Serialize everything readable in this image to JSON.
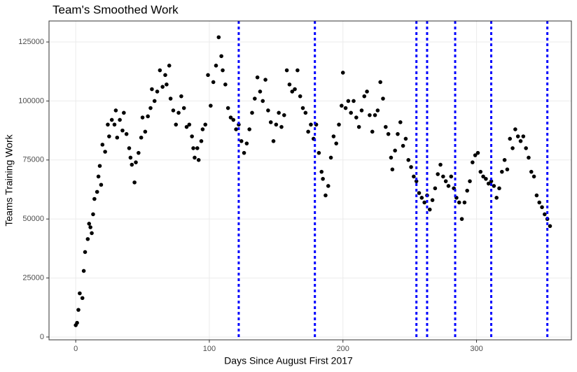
{
  "chart_data": {
    "type": "scatter",
    "title": "Team's Smoothed Work",
    "x_label": "Days Since August First 2017",
    "y_label": "Teams Training Work",
    "xlim": [
      -20,
      371
    ],
    "ylim": [
      -1200,
      133900
    ],
    "xticks": [
      0,
      100,
      200,
      300
    ],
    "yticks": [
      0,
      25000,
      50000,
      75000,
      100000,
      125000
    ],
    "grid": true,
    "vlines": [
      122,
      179,
      255,
      263,
      284,
      311,
      353
    ],
    "vline_color": "#0000ff",
    "series": [
      {
        "color": "#000000",
        "x": [
          0,
          1,
          2,
          3,
          5,
          6,
          7,
          9,
          10,
          11,
          12,
          13,
          14,
          16,
          17,
          18,
          19,
          20,
          22,
          24,
          25,
          27,
          29,
          30,
          31,
          33,
          35,
          36,
          38,
          40,
          41,
          42,
          44,
          45,
          47,
          49,
          50,
          52,
          54,
          56,
          57,
          59,
          61,
          63,
          65,
          67,
          68,
          70,
          71,
          73,
          75,
          77,
          79,
          81,
          83,
          85,
          87,
          88,
          89,
          91,
          92,
          94,
          95,
          97,
          99,
          101,
          103,
          105,
          107,
          109,
          110,
          112,
          114,
          116,
          118,
          120,
          122,
          124,
          126,
          128,
          130,
          132,
          134,
          136,
          138,
          140,
          142,
          144,
          146,
          148,
          150,
          152,
          154,
          156,
          158,
          160,
          162,
          164,
          166,
          168,
          170,
          172,
          174,
          176,
          178,
          180,
          182,
          184,
          185,
          187,
          189,
          191,
          193,
          195,
          197,
          199,
          200,
          202,
          204,
          206,
          208,
          210,
          212,
          214,
          216,
          218,
          220,
          222,
          224,
          226,
          228,
          230,
          232,
          234,
          236,
          237,
          239,
          241,
          243,
          245,
          247,
          249,
          251,
          253,
          255,
          257,
          259,
          261,
          263,
          265,
          267,
          269,
          271,
          273,
          275,
          277,
          279,
          281,
          283,
          285,
          287,
          289,
          291,
          293,
          295,
          297,
          299,
          301,
          303,
          305,
          307,
          309,
          311,
          313,
          315,
          317,
          319,
          321,
          323,
          325,
          327,
          329,
          331,
          333,
          335,
          337,
          339,
          341,
          343,
          345,
          347,
          349,
          351,
          353,
          355
        ],
        "values": [
          5000,
          6000,
          11500,
          18500,
          16500,
          28000,
          36000,
          41500,
          48000,
          46500,
          44000,
          52000,
          58500,
          61500,
          68000,
          72500,
          64500,
          81500,
          78500,
          90000,
          85000,
          92000,
          90000,
          96000,
          84500,
          92000,
          87500,
          95000,
          86000,
          80000,
          76000,
          73000,
          65500,
          74000,
          78000,
          84500,
          93000,
          87000,
          93500,
          97000,
          105000,
          100000,
          104000,
          113000,
          106000,
          111000,
          107000,
          115000,
          101000,
          96000,
          90000,
          95000,
          102000,
          97000,
          89000,
          90000,
          85000,
          80000,
          76000,
          80000,
          75000,
          83000,
          88000,
          90000,
          111000,
          98000,
          108000,
          115000,
          127000,
          119000,
          113000,
          107000,
          97000,
          93000,
          92000,
          88000,
          90000,
          83000,
          78000,
          82000,
          88000,
          95000,
          101000,
          110000,
          104000,
          100000,
          109000,
          96000,
          91000,
          83000,
          90000,
          95000,
          89000,
          94000,
          113000,
          107000,
          104000,
          105000,
          113000,
          102000,
          97000,
          95000,
          87000,
          90000,
          84000,
          90000,
          78000,
          70000,
          67000,
          60000,
          64000,
          76000,
          85000,
          82000,
          90000,
          98000,
          112000,
          97000,
          100000,
          95000,
          100000,
          93000,
          89000,
          96000,
          102000,
          104000,
          94000,
          87000,
          94000,
          96000,
          108000,
          101000,
          89000,
          86000,
          76000,
          71000,
          79000,
          86000,
          91000,
          81000,
          84000,
          75000,
          72000,
          68000,
          66000,
          61000,
          59000,
          57000,
          60000,
          54000,
          58000,
          63000,
          69000,
          73000,
          68000,
          66000,
          64000,
          68000,
          63000,
          59000,
          57000,
          50000,
          57000,
          62000,
          66000,
          74000,
          77000,
          78000,
          70000,
          68000,
          67000,
          65000,
          66000,
          64000,
          59000,
          63000,
          70000,
          75000,
          71000,
          84000,
          80000,
          88000,
          85000,
          83000,
          85000,
          80000,
          76000,
          70000,
          68000,
          60000,
          57000,
          55000,
          52000,
          50000,
          47000
        ]
      }
    ]
  }
}
